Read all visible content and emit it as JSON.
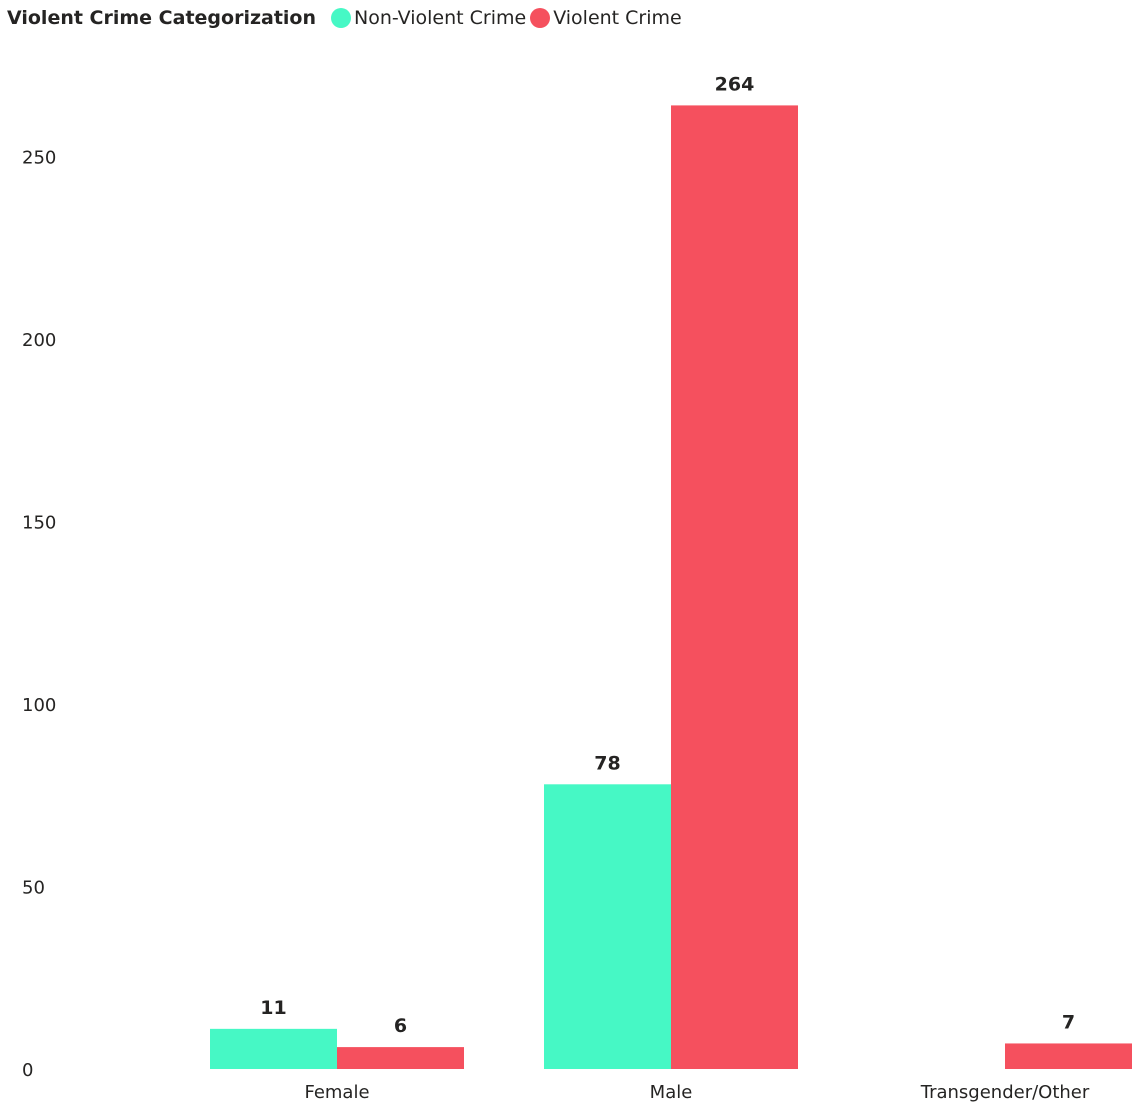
{
  "legend": {
    "title": "Violent Crime Categorization"
  },
  "chart_data": {
    "type": "bar",
    "categories": [
      "Female",
      "Male",
      "Transgender/Other"
    ],
    "series": [
      {
        "name": "Non-Violent Crime",
        "color": "#46F8C5",
        "values": [
          11,
          78,
          null
        ]
      },
      {
        "name": "Violent Crime",
        "color": "#F5505E",
        "values": [
          6,
          264,
          7
        ]
      }
    ],
    "yticks": [
      0,
      50,
      100,
      150,
      200,
      250
    ],
    "ylim": [
      0,
      264
    ],
    "grid": false,
    "legend_position": "top-left",
    "data_labels": true
  }
}
